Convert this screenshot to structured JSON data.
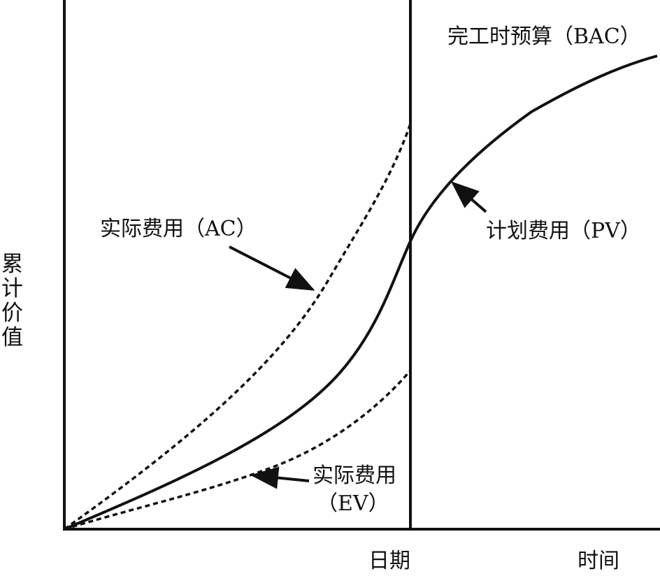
{
  "diagram": {
    "y_axis_label_chars": [
      "累",
      "计",
      "价",
      "值"
    ],
    "labels": {
      "bac": "完工时预算（BAC）",
      "ac": "实际费用（AC）",
      "pv": "计划费用（PV）",
      "ev_line1": "实际费用",
      "ev_line2": "（EV）",
      "status_date": "日期",
      "time_axis": "时间"
    },
    "colors": {
      "line": "#111111",
      "background": "#ffffff"
    }
  }
}
